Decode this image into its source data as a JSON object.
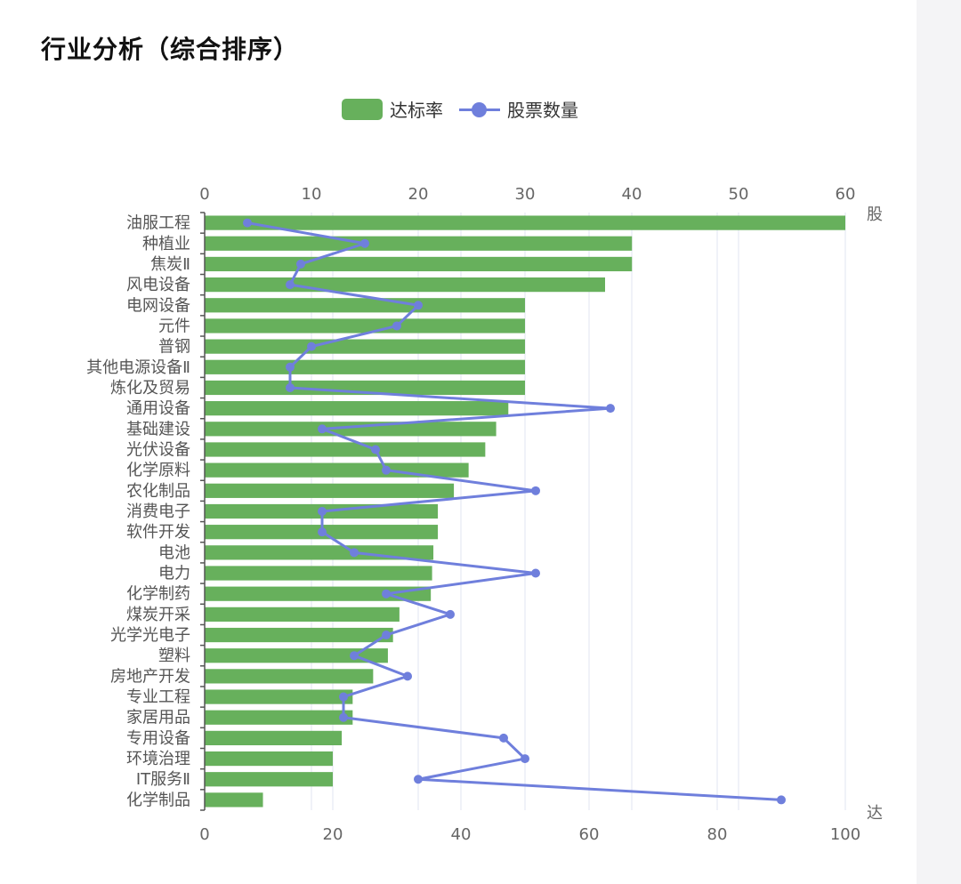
{
  "title": "行业分析（综合排序）",
  "colors": {
    "bar": "#67b05c",
    "line": "#6f7fdc",
    "grid": "#e2e4f2",
    "axis": "#555555"
  },
  "chart_data": {
    "type": "bar",
    "orientation": "horizontal",
    "categories": [
      "油服工程",
      "种植业",
      "焦炭Ⅱ",
      "风电设备",
      "电网设备",
      "元件",
      "普钢",
      "其他电源设备Ⅱ",
      "炼化及贸易",
      "通用设备",
      "基础建设",
      "光伏设备",
      "化学原料",
      "农化制品",
      "消费电子",
      "软件开发",
      "电池",
      "电力",
      "化学制药",
      "煤炭开采",
      "光学光电子",
      "塑料",
      "房地产开发",
      "专业工程",
      "家居用品",
      "专用设备",
      "环境治理",
      "IT服务Ⅱ",
      "化学制品"
    ],
    "series": [
      {
        "name": "达标率",
        "type": "bar",
        "axis": "bottom",
        "values": [
          100,
          66.7,
          66.7,
          62.5,
          50,
          50,
          50,
          50,
          50,
          47.4,
          45.5,
          43.8,
          41.2,
          38.9,
          36.4,
          36.4,
          35.7,
          35.5,
          35.3,
          30.4,
          29.4,
          28.6,
          26.3,
          23.1,
          23.1,
          21.4,
          20,
          20,
          9.1
        ]
      },
      {
        "name": "股票数量",
        "type": "line",
        "axis": "top",
        "values": [
          4,
          15,
          9,
          8,
          20,
          18,
          10,
          8,
          8,
          38,
          11,
          16,
          17,
          31,
          11,
          11,
          14,
          31,
          17,
          23,
          17,
          14,
          19,
          13,
          13,
          28,
          30,
          20,
          54
        ]
      }
    ],
    "x_bottom": {
      "ticks": [
        0,
        20,
        40,
        60,
        80,
        100
      ],
      "name": "达"
    },
    "x_top": {
      "ticks": [
        0,
        10,
        20,
        30,
        40,
        50,
        60
      ],
      "name": "股"
    },
    "grid": true,
    "legend": "top-center"
  }
}
